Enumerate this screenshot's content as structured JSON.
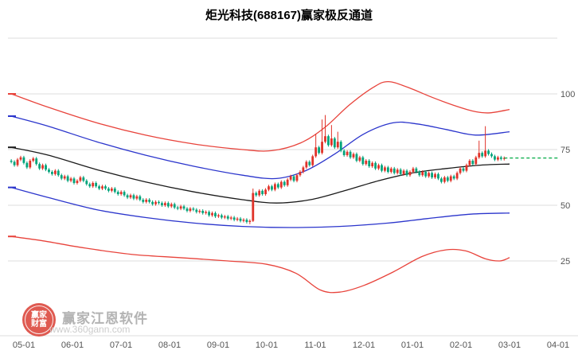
{
  "watermark": {
    "brand": "赢家江恩软件",
    "url": "www.360gann.com",
    "logo_line1": "赢家",
    "logo_line2": "财富"
  },
  "colors": {
    "up_candle": "#e03228",
    "down_candle": "#00a37a",
    "channel_red": "#e8433b",
    "channel_blue": "#2b35cc",
    "channel_black": "#1a1a1a",
    "price_line": "#00aa44",
    "grid": "#dcdcdc",
    "axis_text": "#555555"
  },
  "chart_data": {
    "type": "candlestick",
    "title": "炬光科技(688167)赢家极反通道",
    "x_labels": [
      "05-01",
      "06-01",
      "07-01",
      "08-01",
      "09-01",
      "10-01",
      "11-01",
      "12-01",
      "01-01",
      "02-01",
      "03-01",
      "04-01"
    ],
    "y_ticks": [
      100,
      75,
      50,
      25
    ],
    "ylim": [
      0,
      125
    ],
    "grid": true,
    "legend": "none",
    "price_line_value": 71.2,
    "first_open": 70,
    "closes": [
      69.5,
      68,
      70.5,
      71.5,
      69,
      67,
      70,
      71,
      68.5,
      66.5,
      68,
      66,
      65,
      64,
      65.5,
      63.5,
      62,
      63,
      61,
      62,
      60,
      61,
      62.5,
      61,
      59.5,
      58.5,
      60,
      58.5,
      57.5,
      58.5,
      57.5,
      56.5,
      57.5,
      56,
      55,
      56,
      54.5,
      53.5,
      54.5,
      53,
      54,
      52.5,
      51.5,
      52.5,
      51.5,
      50.5,
      51.5,
      51,
      50,
      51,
      49.5,
      50.5,
      49,
      48.5,
      49.5,
      48.5,
      47.5,
      48.5,
      48,
      47,
      47.5,
      46.5,
      47,
      45.5,
      46.5,
      45,
      45.5,
      44.5,
      45,
      44,
      44.5,
      43.5,
      44,
      43,
      43.5,
      42.5,
      43,
      55.5,
      54.5,
      56.5,
      55,
      57,
      58.5,
      57,
      59.5,
      58,
      60.5,
      59,
      61.5,
      63,
      61,
      63.5,
      65,
      67,
      69.5,
      68,
      72,
      76,
      73.5,
      78.5,
      81,
      77,
      80,
      76,
      78.5,
      74.5,
      72.5,
      74,
      71.5,
      73,
      70,
      71.5,
      68.5,
      70,
      67.5,
      69,
      66.5,
      68,
      65.5,
      67,
      65,
      66.5,
      64.5,
      66,
      64,
      65.5,
      63.5,
      65,
      66.5,
      65,
      63.5,
      65,
      63,
      64.5,
      62.5,
      64,
      62,
      60.5,
      62.5,
      61,
      63,
      62,
      64.5,
      66.5,
      65.5,
      68,
      70,
      68.5,
      71.5,
      73.5,
      72,
      74.5,
      73,
      72,
      70.5,
      71.5,
      70.8,
      71.2
    ],
    "wick_overrides": {
      "76": {
        "l": 41.5
      },
      "77": {
        "h": 57.5,
        "l": 42.5
      },
      "97": {
        "h": 82
      },
      "99": {
        "h": 88.5
      },
      "100": {
        "h": 90.5
      },
      "102": {
        "h": 86
      },
      "104": {
        "h": 83
      },
      "149": {
        "h": 79
      },
      "151": {
        "h": 85.5
      }
    },
    "channels": [
      {
        "id": "upper-red",
        "color": "#e8433b",
        "points": [
          [
            -0.26,
            100
          ],
          [
            0.5,
            94
          ],
          [
            1.5,
            87
          ],
          [
            2.5,
            81.5
          ],
          [
            3.5,
            77.5
          ],
          [
            4.5,
            75
          ],
          [
            5.1,
            74.5
          ],
          [
            5.7,
            78
          ],
          [
            6.2,
            85
          ],
          [
            6.7,
            95
          ],
          [
            7.2,
            103
          ],
          [
            7.5,
            105.5
          ],
          [
            7.9,
            103
          ],
          [
            8.4,
            98.5
          ],
          [
            8.9,
            94.5
          ],
          [
            9.3,
            92
          ],
          [
            9.6,
            91.5
          ],
          [
            10,
            93
          ]
        ]
      },
      {
        "id": "upper-blue",
        "color": "#2b35cc",
        "points": [
          [
            -0.26,
            90
          ],
          [
            0.5,
            85.5
          ],
          [
            1.5,
            78.5
          ],
          [
            2.5,
            72.5
          ],
          [
            3.5,
            67.5
          ],
          [
            4.5,
            63.5
          ],
          [
            5.2,
            62
          ],
          [
            5.8,
            65.5
          ],
          [
            6.4,
            73
          ],
          [
            7,
            82
          ],
          [
            7.6,
            87
          ],
          [
            8.1,
            86.5
          ],
          [
            8.7,
            84
          ],
          [
            9.3,
            81.5
          ],
          [
            10,
            83
          ]
        ]
      },
      {
        "id": "mid-black",
        "color": "#1a1a1a",
        "points": [
          [
            -0.26,
            76
          ],
          [
            0.5,
            72.5
          ],
          [
            1.5,
            66
          ],
          [
            2.5,
            60.5
          ],
          [
            3.5,
            56
          ],
          [
            4.5,
            52.5
          ],
          [
            5.2,
            51
          ],
          [
            5.9,
            52.5
          ],
          [
            6.6,
            56.5
          ],
          [
            7.3,
            61
          ],
          [
            8,
            64.5
          ],
          [
            8.7,
            66.5
          ],
          [
            9.4,
            68
          ],
          [
            10,
            68.5
          ]
        ]
      },
      {
        "id": "lower-blue",
        "color": "#2b35cc",
        "points": [
          [
            -0.26,
            58
          ],
          [
            0.5,
            53.5
          ],
          [
            1.5,
            48
          ],
          [
            2.5,
            44.5
          ],
          [
            3.5,
            42
          ],
          [
            4.5,
            40.5
          ],
          [
            5.5,
            40
          ],
          [
            6.5,
            40.5
          ],
          [
            7.5,
            42
          ],
          [
            8.3,
            44
          ],
          [
            9.2,
            46
          ],
          [
            10,
            46.5
          ]
        ]
      },
      {
        "id": "lower-red",
        "color": "#e8433b",
        "points": [
          [
            -0.26,
            36
          ],
          [
            0.4,
            34
          ],
          [
            1.2,
            31
          ],
          [
            2.2,
            28
          ],
          [
            3.2,
            26.5
          ],
          [
            4.2,
            25
          ],
          [
            5,
            23.5
          ],
          [
            5.6,
            19.5
          ],
          [
            6.1,
            12
          ],
          [
            6.5,
            11
          ],
          [
            7,
            14
          ],
          [
            7.6,
            20
          ],
          [
            8.2,
            27
          ],
          [
            8.7,
            30
          ],
          [
            9.1,
            29.5
          ],
          [
            9.5,
            26
          ],
          [
            9.8,
            25
          ],
          [
            10,
            26.5
          ]
        ]
      }
    ],
    "left_markers": [
      {
        "v": 100,
        "color": "#e8433b"
      },
      {
        "v": 90,
        "color": "#2b35cc"
      },
      {
        "v": 76,
        "color": "#1a1a1a"
      },
      {
        "v": 58,
        "color": "#2b35cc"
      },
      {
        "v": 36,
        "color": "#e8433b"
      }
    ]
  }
}
